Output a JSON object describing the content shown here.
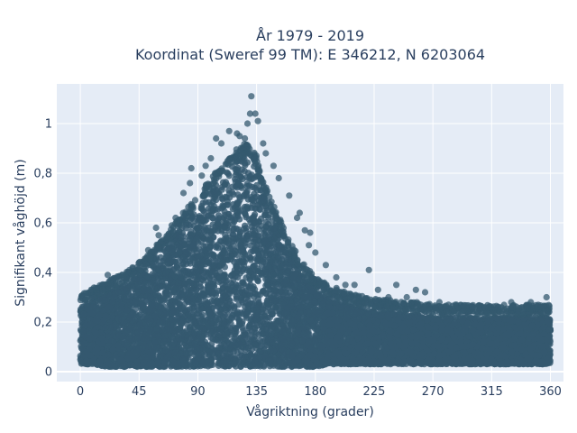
{
  "chart_data": {
    "type": "scatter",
    "title_lines": [
      "År 1979 - 2019",
      "Koordinat (Sweref 99 TM): E 346212, N 6203064"
    ],
    "xlabel": "Vågriktning (grader)",
    "ylabel": "Signifikant våghöjd (m)",
    "xlim": [
      -18,
      370
    ],
    "ylim": [
      -0.04,
      1.16
    ],
    "x_ticks": [
      0,
      45,
      90,
      135,
      180,
      225,
      270,
      315,
      360
    ],
    "x_tick_labels": [
      "0",
      "45",
      "90",
      "135",
      "180",
      "225",
      "270",
      "315",
      "360"
    ],
    "y_ticks": [
      0,
      0.2,
      0.4,
      0.6,
      0.8,
      1.0
    ],
    "y_tick_labels": [
      "0",
      "0,2",
      "0,4",
      "0,6",
      "0,8",
      "1"
    ],
    "grid": true,
    "legend": "none",
    "marker_color": "#34596f",
    "background_color": "#e5ecf6",
    "series": [
      {
        "envelope_x": [
          0,
          10,
          20,
          30,
          40,
          50,
          60,
          70,
          80,
          90,
          100,
          110,
          120,
          125,
          130,
          135,
          140,
          150,
          160,
          170,
          180,
          190,
          200,
          210,
          220,
          230,
          240,
          250,
          260,
          270,
          280,
          290,
          300,
          310,
          320,
          330,
          340,
          350,
          360
        ],
        "envelope_ymin": [
          0.03,
          0.03,
          0.02,
          0.02,
          0.02,
          0.02,
          0.02,
          0.02,
          0.02,
          0.02,
          0.02,
          0.02,
          0.02,
          0.02,
          0.02,
          0.02,
          0.02,
          0.02,
          0.02,
          0.02,
          0.02,
          0.03,
          0.03,
          0.03,
          0.03,
          0.03,
          0.03,
          0.03,
          0.03,
          0.03,
          0.03,
          0.03,
          0.03,
          0.03,
          0.03,
          0.03,
          0.03,
          0.03,
          0.03
        ],
        "envelope_ymax": [
          0.26,
          0.29,
          0.31,
          0.34,
          0.37,
          0.41,
          0.47,
          0.53,
          0.6,
          0.66,
          0.73,
          0.8,
          0.85,
          0.87,
          0.86,
          0.82,
          0.72,
          0.6,
          0.48,
          0.39,
          0.33,
          0.3,
          0.28,
          0.26,
          0.25,
          0.24,
          0.24,
          0.23,
          0.23,
          0.22,
          0.22,
          0.22,
          0.22,
          0.22,
          0.22,
          0.22,
          0.22,
          0.22,
          0.22
        ],
        "outliers": [
          {
            "x": 131,
            "y": 1.11
          },
          {
            "x": 130,
            "y": 1.04
          },
          {
            "x": 134,
            "y": 1.04
          },
          {
            "x": 128,
            "y": 1.0
          },
          {
            "x": 136,
            "y": 1.01
          },
          {
            "x": 114,
            "y": 0.97
          },
          {
            "x": 120,
            "y": 0.96
          },
          {
            "x": 122,
            "y": 0.95
          },
          {
            "x": 104,
            "y": 0.94
          },
          {
            "x": 108,
            "y": 0.92
          },
          {
            "x": 126,
            "y": 0.94
          },
          {
            "x": 140,
            "y": 0.92
          },
          {
            "x": 142,
            "y": 0.88
          },
          {
            "x": 100,
            "y": 0.86
          },
          {
            "x": 96,
            "y": 0.83
          },
          {
            "x": 85,
            "y": 0.82
          },
          {
            "x": 93,
            "y": 0.79
          },
          {
            "x": 148,
            "y": 0.83
          },
          {
            "x": 152,
            "y": 0.78
          },
          {
            "x": 79,
            "y": 0.72
          },
          {
            "x": 84,
            "y": 0.76
          },
          {
            "x": 160,
            "y": 0.71
          },
          {
            "x": 168,
            "y": 0.64
          },
          {
            "x": 166,
            "y": 0.62
          },
          {
            "x": 172,
            "y": 0.57
          },
          {
            "x": 176,
            "y": 0.56
          },
          {
            "x": 175,
            "y": 0.51
          },
          {
            "x": 73,
            "y": 0.62
          },
          {
            "x": 70,
            "y": 0.59
          },
          {
            "x": 58,
            "y": 0.58
          },
          {
            "x": 60,
            "y": 0.55
          },
          {
            "x": 52,
            "y": 0.49
          },
          {
            "x": 45,
            "y": 0.44
          },
          {
            "x": 40,
            "y": 0.42
          },
          {
            "x": 21,
            "y": 0.39
          },
          {
            "x": 9,
            "y": 0.33
          },
          {
            "x": 12,
            "y": 0.33
          },
          {
            "x": 180,
            "y": 0.48
          },
          {
            "x": 188,
            "y": 0.43
          },
          {
            "x": 196,
            "y": 0.38
          },
          {
            "x": 203,
            "y": 0.35
          },
          {
            "x": 210,
            "y": 0.35
          },
          {
            "x": 221,
            "y": 0.41
          },
          {
            "x": 228,
            "y": 0.33
          },
          {
            "x": 242,
            "y": 0.35
          },
          {
            "x": 236,
            "y": 0.3
          },
          {
            "x": 250,
            "y": 0.3
          },
          {
            "x": 257,
            "y": 0.33
          },
          {
            "x": 264,
            "y": 0.32
          },
          {
            "x": 275,
            "y": 0.28
          },
          {
            "x": 282,
            "y": 0.27
          },
          {
            "x": 300,
            "y": 0.26
          },
          {
            "x": 313,
            "y": 0.26
          },
          {
            "x": 330,
            "y": 0.28
          },
          {
            "x": 345,
            "y": 0.28
          },
          {
            "x": 357,
            "y": 0.3
          },
          {
            "x": 353,
            "y": 0.26
          },
          {
            "x": 4,
            "y": 0.29
          },
          {
            "x": 28,
            "y": 0.35
          },
          {
            "x": 35,
            "y": 0.38
          }
        ]
      }
    ]
  }
}
